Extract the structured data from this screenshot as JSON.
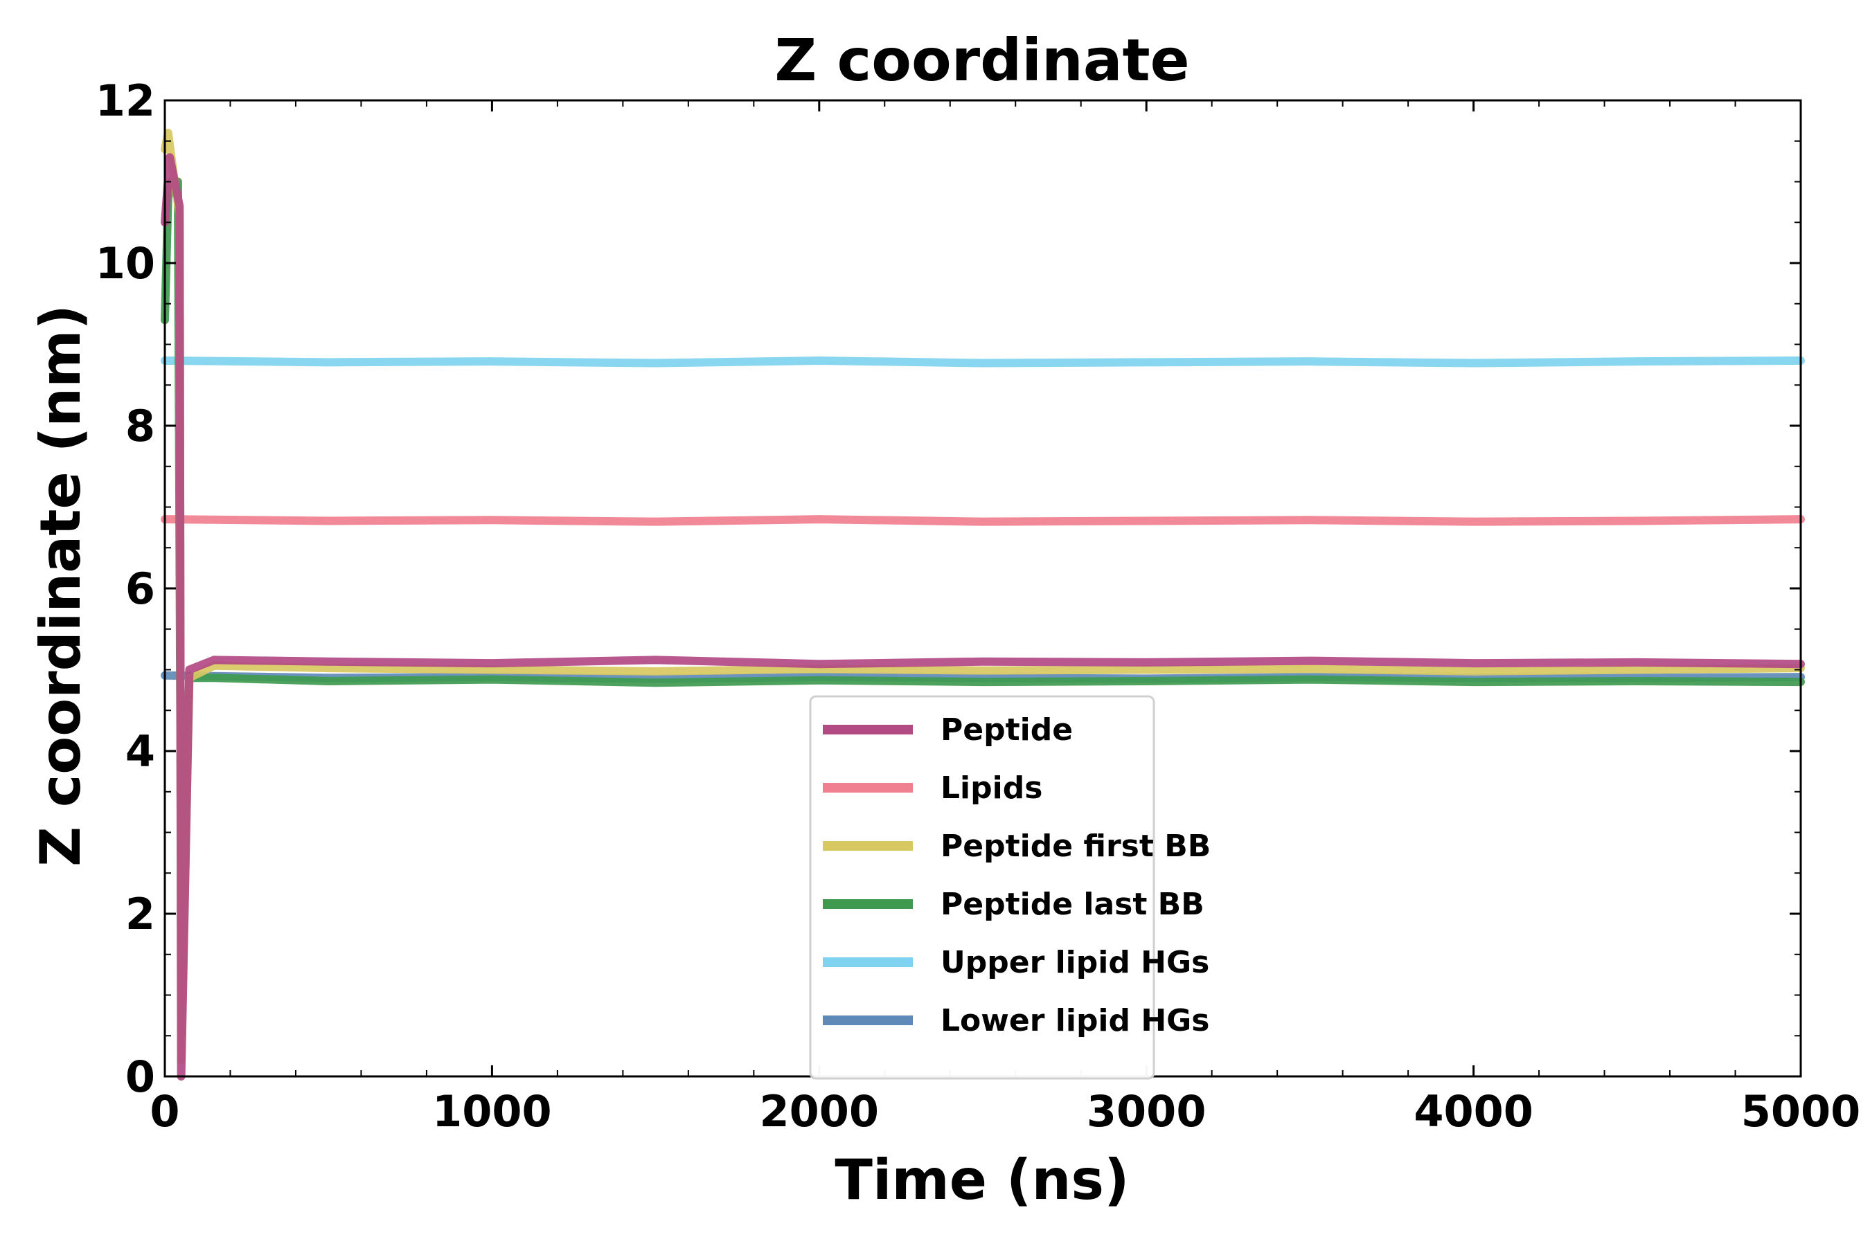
{
  "chart_data": {
    "type": "line",
    "title": "Z coordinate",
    "xlabel": "Time (ns)",
    "ylabel": "Z coordinate (nm)",
    "xlim": [
      0,
      5000
    ],
    "ylim": [
      0,
      12
    ],
    "xticks": [
      0,
      1000,
      2000,
      3000,
      4000,
      5000
    ],
    "yticks": [
      0,
      2,
      4,
      6,
      8,
      10,
      12
    ],
    "xtick_labels": [
      "0",
      "1000",
      "2000",
      "3000",
      "4000",
      "5000"
    ],
    "ytick_labels": [
      "0",
      "2",
      "4",
      "6",
      "8",
      "10",
      "12"
    ],
    "grid": false,
    "legend_position": "lower-center",
    "series": [
      {
        "name": "Upper lipid HGs",
        "color": "#7fd3f0",
        "points": [
          [
            0,
            8.8
          ],
          [
            500,
            8.78
          ],
          [
            1000,
            8.79
          ],
          [
            1500,
            8.77
          ],
          [
            2000,
            8.8
          ],
          [
            2500,
            8.77
          ],
          [
            3000,
            8.78
          ],
          [
            3500,
            8.79
          ],
          [
            4000,
            8.77
          ],
          [
            4500,
            8.79
          ],
          [
            5000,
            8.8
          ]
        ]
      },
      {
        "name": "Lipids",
        "color": "#f07f8f",
        "points": [
          [
            0,
            6.85
          ],
          [
            500,
            6.83
          ],
          [
            1000,
            6.84
          ],
          [
            1500,
            6.82
          ],
          [
            2000,
            6.85
          ],
          [
            2500,
            6.82
          ],
          [
            3000,
            6.83
          ],
          [
            3500,
            6.84
          ],
          [
            4000,
            6.82
          ],
          [
            4500,
            6.83
          ],
          [
            5000,
            6.85
          ]
        ]
      },
      {
        "name": "Lower lipid HGs",
        "color": "#5f8ab8",
        "points": [
          [
            0,
            4.93
          ],
          [
            500,
            4.9
          ],
          [
            1000,
            4.91
          ],
          [
            1500,
            4.89
          ],
          [
            2000,
            4.91
          ],
          [
            2500,
            4.9
          ],
          [
            3000,
            4.89
          ],
          [
            3500,
            4.91
          ],
          [
            4000,
            4.9
          ],
          [
            4500,
            4.9
          ],
          [
            5000,
            4.91
          ]
        ]
      },
      {
        "name": "Peptide last BB",
        "color": "#3f9a4f",
        "points": [
          [
            0,
            9.3
          ],
          [
            10,
            10.8
          ],
          [
            20,
            11.0
          ],
          [
            40,
            11.0
          ],
          [
            50,
            2.2
          ],
          [
            75,
            4.9
          ],
          [
            150,
            4.9
          ],
          [
            500,
            4.86
          ],
          [
            1000,
            4.88
          ],
          [
            1500,
            4.84
          ],
          [
            2000,
            4.87
          ],
          [
            2500,
            4.85
          ],
          [
            3000,
            4.86
          ],
          [
            3500,
            4.88
          ],
          [
            4000,
            4.85
          ],
          [
            4500,
            4.86
          ],
          [
            5000,
            4.85
          ]
        ]
      },
      {
        "name": "Peptide first BB",
        "color": "#d8c862",
        "points": [
          [
            0,
            11.4
          ],
          [
            10,
            11.6
          ],
          [
            30,
            11.0
          ],
          [
            45,
            10.6
          ],
          [
            50,
            0.2
          ],
          [
            75,
            4.9
          ],
          [
            150,
            5.05
          ],
          [
            500,
            5.02
          ],
          [
            1000,
            5.0
          ],
          [
            1500,
            4.98
          ],
          [
            2000,
            5.01
          ],
          [
            2500,
            4.99
          ],
          [
            3000,
            5.0
          ],
          [
            3500,
            5.01
          ],
          [
            4000,
            4.98
          ],
          [
            4500,
            5.0
          ],
          [
            5000,
            5.02
          ]
        ]
      },
      {
        "name": "Peptide",
        "color": "#b24a84",
        "points": [
          [
            0,
            10.5
          ],
          [
            15,
            11.3
          ],
          [
            30,
            11.0
          ],
          [
            45,
            10.7
          ],
          [
            50,
            0.0
          ],
          [
            75,
            5.0
          ],
          [
            150,
            5.12
          ],
          [
            500,
            5.1
          ],
          [
            1000,
            5.08
          ],
          [
            1500,
            5.12
          ],
          [
            2000,
            5.07
          ],
          [
            2500,
            5.1
          ],
          [
            3000,
            5.09
          ],
          [
            3500,
            5.11
          ],
          [
            4000,
            5.08
          ],
          [
            4500,
            5.09
          ],
          [
            5000,
            5.07
          ]
        ]
      }
    ],
    "legend_order": [
      "Peptide",
      "Lipids",
      "Peptide first BB",
      "Peptide last BB",
      "Upper lipid HGs",
      "Lower lipid HGs"
    ]
  }
}
